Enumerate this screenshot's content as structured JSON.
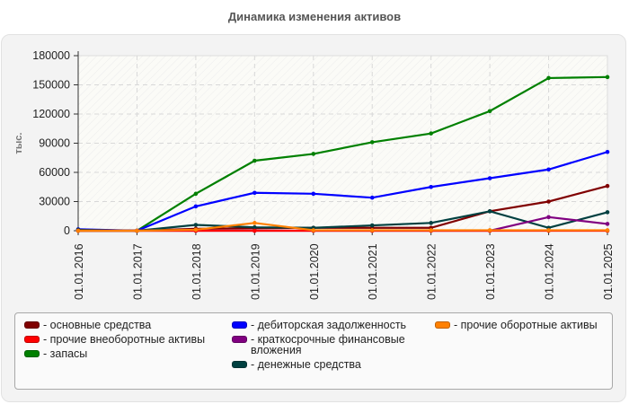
{
  "header": {
    "title": "Динамика изменения активов"
  },
  "chart_data": {
    "type": "line",
    "title": "Динамика изменения активов",
    "xlabel": "",
    "ylabel": "тыс.",
    "ylim": [
      0,
      180000
    ],
    "yticks": [
      "0",
      "30000",
      "60000",
      "90000",
      "120000",
      "150000",
      "180000"
    ],
    "grid": true,
    "legend_position": "bottom",
    "categories": [
      "01.01.2016",
      "01.01.2017",
      "01.01.2018",
      "01.01.2019",
      "01.01.2020",
      "01.01.2021",
      "01.01.2022",
      "01.01.2023",
      "01.01.2024",
      "01.01.2025"
    ],
    "series": [
      {
        "name": "основные средства",
        "color": "#800000",
        "values": [
          0,
          0,
          2000,
          2500,
          3000,
          3000,
          3000,
          20000,
          30000,
          46000
        ]
      },
      {
        "name": "прочие внеоборотные активы",
        "color": "#ff0000",
        "values": [
          0,
          0,
          0,
          0,
          0,
          0,
          0,
          0,
          0,
          0
        ]
      },
      {
        "name": "запасы",
        "color": "#008000",
        "values": [
          0,
          0,
          38000,
          72000,
          79000,
          91000,
          100000,
          123000,
          157000,
          158000
        ]
      },
      {
        "name": "дебиторская задолженность",
        "color": "#0000ff",
        "values": [
          1500,
          0,
          25000,
          39000,
          38000,
          34000,
          45000,
          54000,
          63000,
          81000
        ]
      },
      {
        "name": "краткосрочные финансовые вложения",
        "color": "#800080",
        "values": [
          0,
          0,
          0,
          0,
          0,
          0,
          0,
          0,
          14000,
          7000
        ]
      },
      {
        "name": "денежные средства",
        "color": "#004040",
        "values": [
          1000,
          0,
          6000,
          3500,
          3000,
          5500,
          8000,
          20000,
          3000,
          19000
        ]
      },
      {
        "name": "прочие оборотные активы",
        "color": "#ff8000",
        "values": [
          0,
          0,
          1000,
          8000,
          500,
          500,
          500,
          500,
          500,
          500
        ]
      }
    ]
  },
  "legend": {
    "columns": [
      [
        {
          "label": "- основные средства",
          "series": 0
        },
        {
          "label": "- прочие внеоборотные активы",
          "series": 1
        },
        {
          "label": "- запасы",
          "series": 2
        }
      ],
      [
        {
          "label": "- дебиторская задолженность",
          "series": 3
        },
        {
          "label": "- краткосрочные финансовые\nвложения",
          "series": 4
        },
        {
          "label": "- денежные средства",
          "series": 5
        }
      ],
      [
        {
          "label": "- прочие оборотные активы",
          "series": 6
        }
      ]
    ]
  }
}
